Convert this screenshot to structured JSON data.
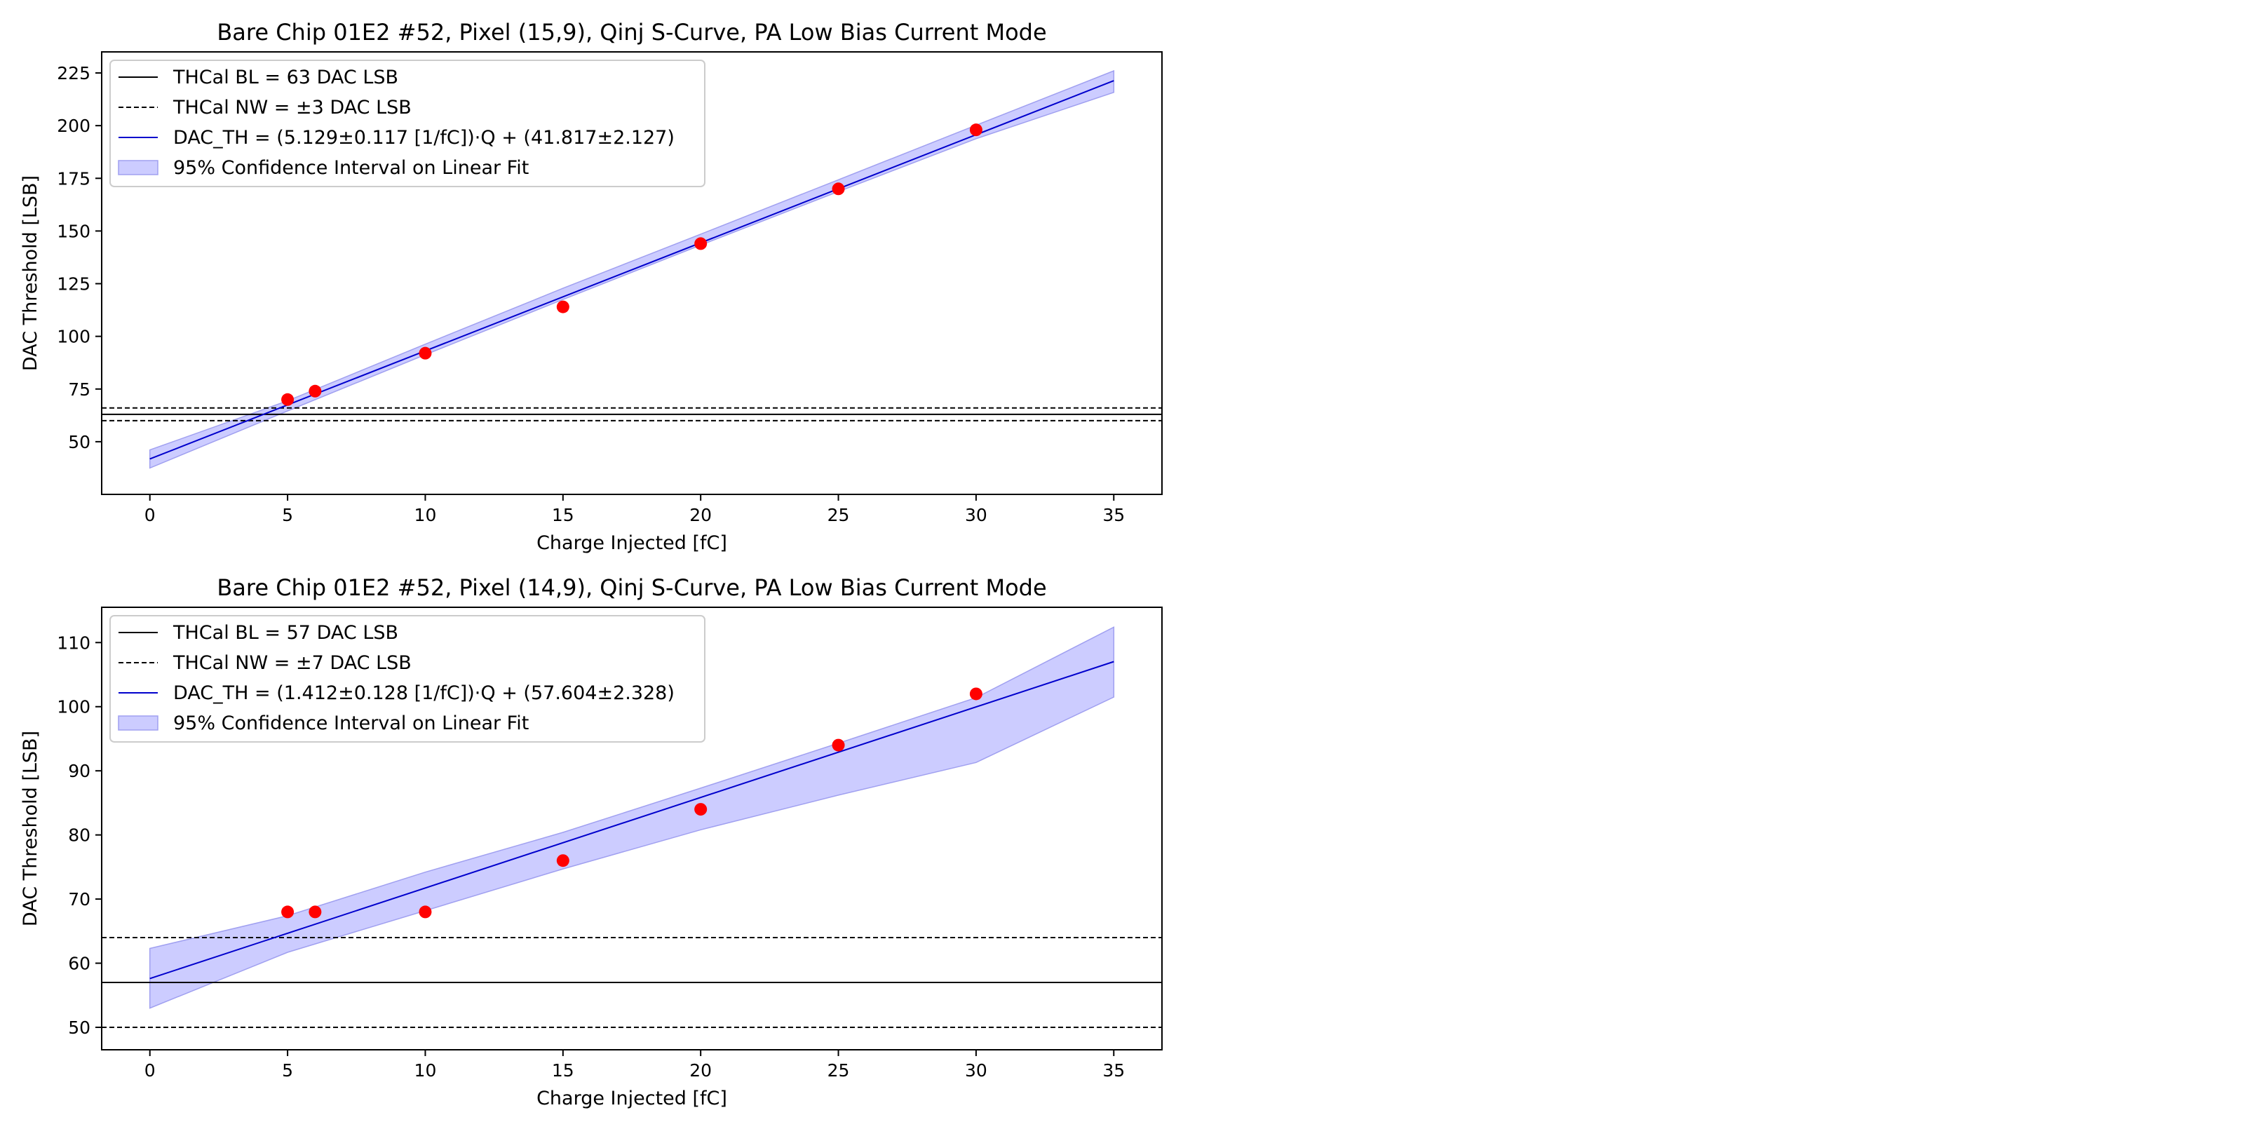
{
  "chart_data": [
    {
      "type": "scatter",
      "title": "Bare Chip 01E2 #52, Pixel (15,9), Qinj S-Curve, PA Low Bias Current Mode",
      "xlabel": "Charge Injected [fC]",
      "ylabel": "DAC Threshold [LSB]",
      "xlim": [
        -1.75,
        36.75
      ],
      "ylim": [
        25,
        235
      ],
      "xticks": [
        0,
        5,
        10,
        15,
        20,
        25,
        30,
        35
      ],
      "yticks": [
        50,
        75,
        100,
        125,
        150,
        175,
        200,
        225
      ],
      "legend_position": "upper left",
      "legend": [
        "THCal BL = 63 DAC LSB",
        "THCal NW = ±3 DAC LSB",
        "DAC_TH = (5.129±0.117 [1/fC])·Q + (41.817±2.127)",
        "95% Confidence Interval on Linear Fit"
      ],
      "points": {
        "x": [
          5,
          6,
          10,
          15,
          20,
          25,
          30
        ],
        "y": [
          70,
          74,
          92,
          114,
          144,
          170,
          198
        ]
      },
      "fit": {
        "slope": 5.129,
        "intercept": 41.817,
        "x_range": [
          0,
          35
        ]
      },
      "confidence_band": {
        "x": [
          0,
          5,
          10,
          15,
          20,
          25,
          30,
          35
        ],
        "lower": [
          37.5,
          64.6,
          91.3,
          117.5,
          143.3,
          168.7,
          193.8,
          215.8
        ],
        "upper": [
          46.1,
          69.4,
          96.3,
          122.8,
          148.5,
          174.3,
          200.2,
          226.0
        ]
      },
      "hlines": {
        "baseline": 63,
        "noise_width": [
          60,
          66
        ]
      },
      "colors": {
        "points": "#ff0000",
        "fit": "#0000cc",
        "band": "#ccccff",
        "band_edge": "#a0a0f0",
        "lines": "#000000"
      }
    },
    {
      "type": "scatter",
      "title": "Bare Chip 01E2 #52, Pixel (14,9), Qinj S-Curve, PA Low Bias Current Mode",
      "xlabel": "Charge Injected [fC]",
      "ylabel": "DAC Threshold [LSB]",
      "xlim": [
        -1.75,
        36.75
      ],
      "ylim": [
        46.5,
        115.5
      ],
      "xticks": [
        0,
        5,
        10,
        15,
        20,
        25,
        30,
        35
      ],
      "yticks": [
        50,
        60,
        70,
        80,
        90,
        100,
        110
      ],
      "legend_position": "upper left",
      "legend": [
        "THCal BL = 57 DAC LSB",
        "THCal NW = ±7 DAC LSB",
        "DAC_TH = (1.412±0.128 [1/fC])·Q + (57.604±2.328)",
        "95% Confidence Interval on Linear Fit"
      ],
      "points": {
        "x": [
          5,
          6,
          10,
          15,
          20,
          25,
          30
        ],
        "y": [
          68,
          68,
          68,
          76,
          84,
          94,
          102
        ]
      },
      "fit": {
        "slope": 1.412,
        "intercept": 57.604,
        "x_range": [
          0,
          35
        ]
      },
      "confidence_band": {
        "x": [
          0,
          5,
          10,
          15,
          20,
          25,
          30,
          35
        ],
        "lower": [
          53.0,
          61.7,
          68.2,
          74.7,
          80.8,
          86.2,
          91.3,
          101.5
        ],
        "upper": [
          62.3,
          67.4,
          74.2,
          80.4,
          87.3,
          94.3,
          101.4,
          112.4
        ]
      },
      "hlines": {
        "baseline": 57,
        "noise_width": [
          50,
          64
        ]
      },
      "colors": {
        "points": "#ff0000",
        "fit": "#0000cc",
        "band": "#ccccff",
        "band_edge": "#a0a0f0",
        "lines": "#000000"
      }
    }
  ]
}
